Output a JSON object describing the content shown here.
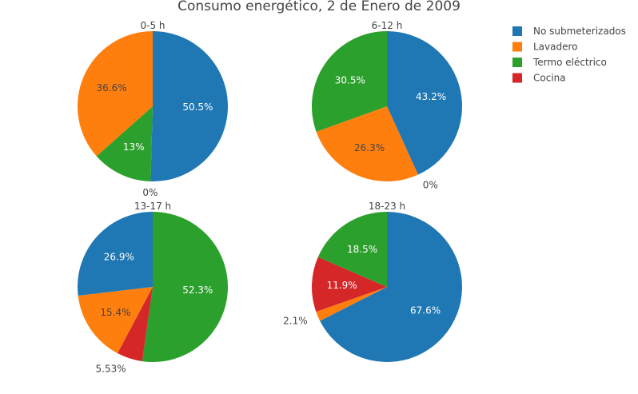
{
  "chart_data": {
    "type": "pie",
    "title": "Consumo energético, 2 de Enero de 2009",
    "legend": {
      "position": "top-right",
      "entries": [
        "No submeterizados",
        "Lavadero",
        "Termo eléctrico",
        "Cocina"
      ]
    },
    "colors": {
      "No submeterizados": "#1f77b4",
      "Lavadero": "#ff7f0e",
      "Termo eléctrico": "#2ca02c",
      "Cocina": "#d62728"
    },
    "pies": [
      {
        "title": "0-5 h",
        "slices": [
          {
            "category": "No submeterizados",
            "value": 50.5,
            "label": "50.5%"
          },
          {
            "category": "Cocina",
            "value": 0.0,
            "label": "0%"
          },
          {
            "category": "Termo eléctrico",
            "value": 13.0,
            "label": "13%"
          },
          {
            "category": "Lavadero",
            "value": 36.6,
            "label": "36.6%"
          }
        ]
      },
      {
        "title": "6-12 h",
        "slices": [
          {
            "category": "No submeterizados",
            "value": 43.2,
            "label": "43.2%"
          },
          {
            "category": "Cocina",
            "value": 0.0,
            "label": "0%"
          },
          {
            "category": "Lavadero",
            "value": 26.3,
            "label": "26.3%"
          },
          {
            "category": "Termo eléctrico",
            "value": 30.5,
            "label": "30.5%"
          }
        ]
      },
      {
        "title": "13-17 h",
        "slices": [
          {
            "category": "Termo eléctrico",
            "value": 52.3,
            "label": "52.3%"
          },
          {
            "category": "Cocina",
            "value": 5.53,
            "label": "5.53%"
          },
          {
            "category": "Lavadero",
            "value": 15.4,
            "label": "15.4%"
          },
          {
            "category": "No submeterizados",
            "value": 26.9,
            "label": "26.9%"
          }
        ]
      },
      {
        "title": "18-23 h",
        "slices": [
          {
            "category": "No submeterizados",
            "value": 67.6,
            "label": "67.6%"
          },
          {
            "category": "Lavadero",
            "value": 2.1,
            "label": "2.1%"
          },
          {
            "category": "Cocina",
            "value": 11.9,
            "label": "11.9%"
          },
          {
            "category": "Termo eléctrico",
            "value": 18.5,
            "label": "18.5%"
          }
        ]
      }
    ]
  }
}
